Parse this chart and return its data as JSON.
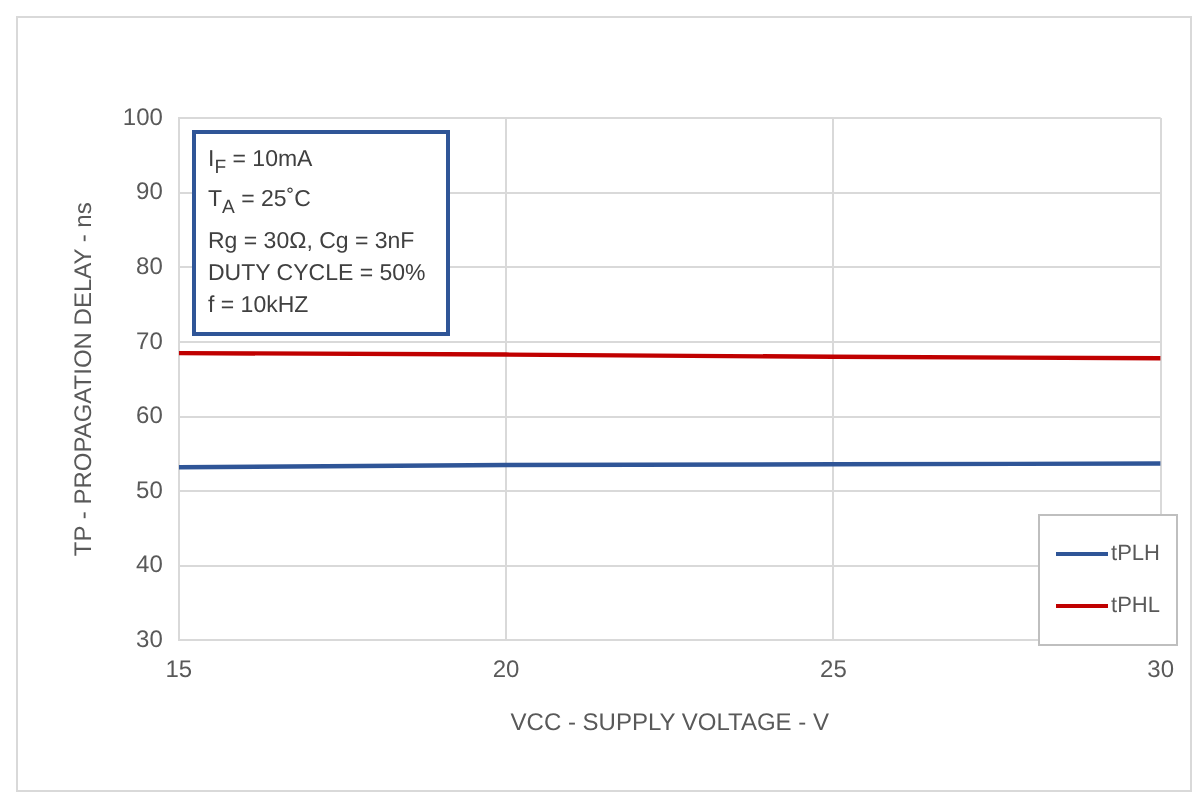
{
  "chart_data": {
    "type": "line",
    "xlabel": "VCC - SUPPLY VOLTAGE - V",
    "ylabel": "TP - PROPAGATION DELAY - ns",
    "x": [
      15,
      20,
      25,
      30
    ],
    "series": [
      {
        "name": "tPLH",
        "color": "#2f5597",
        "values": [
          53.2,
          53.5,
          53.6,
          53.7
        ]
      },
      {
        "name": "tPHL",
        "color": "#c00000",
        "values": [
          68.5,
          68.3,
          68.0,
          67.8
        ]
      }
    ],
    "xlim": [
      15,
      30
    ],
    "xticks": [
      15,
      20,
      25,
      30
    ],
    "ylim": [
      30,
      100
    ],
    "yticks": [
      30,
      40,
      50,
      60,
      70,
      80,
      90,
      100
    ],
    "grid": true,
    "legend": "bottom right",
    "marker": "none",
    "line_style": "solid",
    "annotations": [
      "I$_{F}$ = 10mA",
      "T$_{A}$ = 25˚C",
      "Rg = 30Ω, Cg = 3nF",
      "DUTY CYCLE = 50%",
      "f = 10kHZ"
    ]
  }
}
